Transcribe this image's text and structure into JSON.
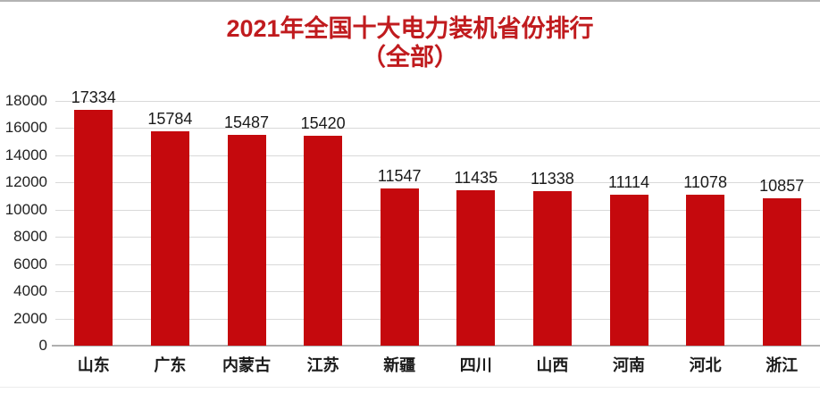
{
  "title": {
    "line1": "2021年全国十大电力装机省份排行",
    "line2": "（全部）"
  },
  "colors": {
    "bar": "#c5090d",
    "title": "#c01b1e",
    "gridline": "#d9d9d9",
    "axis": "#b0b0b0",
    "label": "#1a1a1a",
    "top_line": "#b3b3b3",
    "bottom_line": "#ececec"
  },
  "chart_data": {
    "type": "bar",
    "title": "2021年全国十大电力装机省份排行（全部）",
    "categories": [
      "山东",
      "广东",
      "内蒙古",
      "江苏",
      "新疆",
      "四川",
      "山西",
      "河南",
      "河北",
      "浙江"
    ],
    "values": [
      17334,
      15784,
      15487,
      15420,
      11547,
      11435,
      11338,
      11114,
      11078,
      10857
    ],
    "data_labels": [
      17334,
      15784,
      15487,
      15420,
      11547,
      11435,
      11338,
      11114,
      11078,
      10857
    ],
    "xlabel": "",
    "ylabel": "",
    "ylim": [
      0,
      18000
    ],
    "yticks": [
      0,
      2000,
      4000,
      6000,
      8000,
      10000,
      12000,
      14000,
      16000,
      18000
    ],
    "grid": true,
    "legend": false,
    "bar_color": "#c5090d"
  }
}
